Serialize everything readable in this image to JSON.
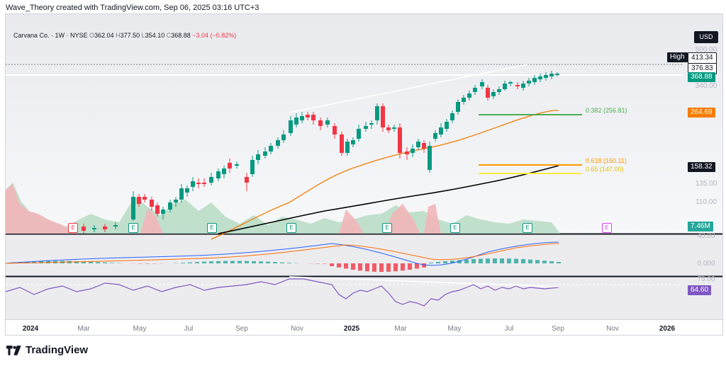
{
  "caption": "Wave_Theory created with TradingView.com, Sep 06, 2025 03:16 UTC+3",
  "legend": {
    "symbol": "Carvana Co. · 1W · NYSE",
    "o_label": "O",
    "o": "362.04",
    "h_label": "H",
    "h": "377.50",
    "l_label": "L",
    "l": "354.10",
    "c_label": "C",
    "c": "368.88",
    "change": "−3.04 (−0.82%)"
  },
  "currency": "USD",
  "price_axis": [
    "500.00",
    "340.00",
    "135.00",
    "110.00",
    "40.00",
    "0.000",
    "75.00"
  ],
  "tags": {
    "high_label": "High",
    "high_value": "413.34",
    "level_376": "376.83",
    "last_price": "368.88",
    "ema50": "264.69",
    "ema200": "158.32",
    "volume": "7.46M",
    "rsi": "64.60"
  },
  "fib_labels": {
    "f382": "0.382 (256.81)",
    "f618": "0.618 (160.11)",
    "f65": "0.65 (147.00)"
  },
  "time_axis": [
    "2024",
    "Mar",
    "May",
    "Jul",
    "Sep",
    "Nov",
    "2025",
    "Mar",
    "May",
    "Jul",
    "Sep",
    "Nov",
    "2026"
  ],
  "earnings_badge": "E",
  "brand": "TradingView",
  "colors": {
    "up": "#089981",
    "down": "#f23645",
    "ema50": "#f57c00",
    "ema200": "#000000",
    "rsi": "#7e57c2",
    "fib382": "#4caf50",
    "fib618": "#ff9800",
    "fib65": "#ffeb3b"
  }
}
